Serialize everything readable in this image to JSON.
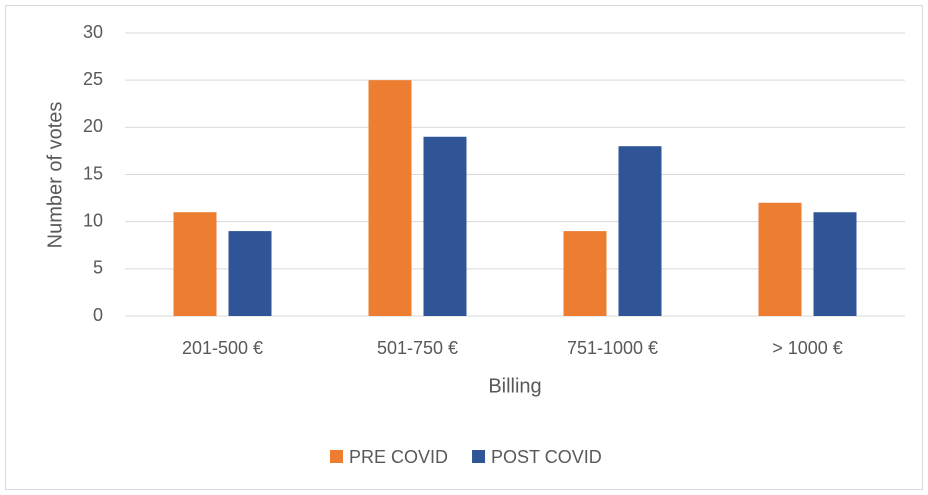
{
  "chart_data": {
    "type": "bar",
    "x_label": "Billing",
    "y_label": "Number of votes",
    "categories": [
      "201-500 €",
      "501-750 €",
      "751-1000 €",
      "> 1000 €"
    ],
    "series": [
      {
        "name": "PRE COVID",
        "color": "#ed7d31",
        "values": [
          11,
          25,
          9,
          12
        ]
      },
      {
        "name": "POST COVID",
        "color": "#2f5597",
        "values": [
          9,
          19,
          18,
          11
        ]
      }
    ],
    "ylim": [
      0,
      30
    ],
    "yticks": [
      0,
      5,
      10,
      15,
      20,
      25,
      30
    ],
    "grid": true,
    "legend": "bottom"
  }
}
